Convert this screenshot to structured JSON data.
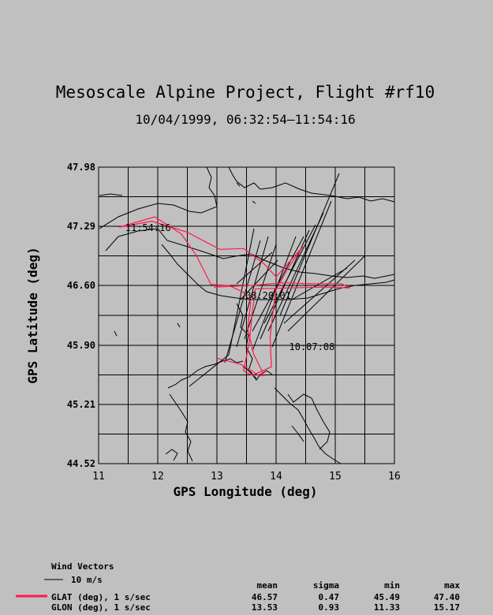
{
  "chart_data": {
    "type": "line",
    "title": "Mesoscale Alpine Project, Flight #rf10",
    "subtitle": "10/04/1999, 06:32:54–11:54:16",
    "xlabel": "GPS Longitude (deg)",
    "ylabel": "GPS Latitude (deg)",
    "xlim": [
      11,
      16
    ],
    "ylim": [
      44.52,
      47.98
    ],
    "x_ticks": [
      "11",
      "12",
      "13",
      "14",
      "15",
      "16"
    ],
    "y_ticks": [
      "44.52",
      "45.21",
      "45.90",
      "46.60",
      "47.29",
      "47.98"
    ],
    "grid": true,
    "series": [
      {
        "name": "GLAT (deg), 1 s/sec",
        "color": "#ff1a4a",
        "points": [
          [
            13.0,
            45.75
          ],
          [
            13.4,
            45.68
          ],
          [
            13.55,
            45.62
          ],
          [
            13.7,
            45.55
          ],
          [
            13.8,
            45.55
          ],
          [
            13.62,
            45.8
          ],
          [
            13.52,
            46.1
          ],
          [
            13.57,
            46.4
          ],
          [
            13.45,
            46.52
          ],
          [
            13.2,
            46.6
          ],
          [
            12.9,
            46.61
          ],
          [
            12.65,
            46.95
          ],
          [
            12.4,
            47.2
          ],
          [
            11.95,
            47.4
          ],
          [
            11.35,
            47.28
          ],
          [
            11.9,
            47.35
          ],
          [
            12.5,
            47.22
          ],
          [
            13.05,
            47.02
          ],
          [
            13.45,
            47.03
          ],
          [
            13.8,
            46.85
          ],
          [
            14.0,
            46.7
          ],
          [
            14.45,
            47.05
          ],
          [
            14.2,
            46.8
          ],
          [
            14.0,
            46.55
          ],
          [
            13.95,
            46.3
          ],
          [
            13.9,
            46.0
          ],
          [
            13.92,
            45.65
          ],
          [
            13.6,
            45.55
          ],
          [
            13.45,
            45.6
          ],
          [
            13.55,
            45.95
          ],
          [
            13.6,
            46.3
          ],
          [
            13.65,
            46.56
          ],
          [
            14.2,
            46.57
          ],
          [
            14.8,
            46.58
          ],
          [
            15.25,
            46.57
          ],
          [
            15.1,
            46.62
          ],
          [
            14.6,
            46.62
          ],
          [
            14.1,
            46.63
          ],
          [
            13.6,
            46.6
          ],
          [
            12.95,
            46.58
          ]
        ]
      }
    ],
    "annotations": [
      {
        "text": "11:54:16",
        "x": 11.45,
        "y": 47.27
      },
      {
        "text": "08:20:01",
        "x": 13.48,
        "y": 46.48
      },
      {
        "text": "10:07:08",
        "x": 14.22,
        "y": 45.88
      }
    ],
    "wind_legend": {
      "title": "Wind Vectors",
      "scale_label": "10 m/s"
    },
    "stats": {
      "headers": [
        "mean",
        "sigma",
        "min",
        "max"
      ],
      "rows": [
        {
          "label": "GLAT (deg), 1 s/sec",
          "mean": "46.57",
          "sigma": "0.47",
          "min": "45.49",
          "max": "47.40"
        },
        {
          "label": "GLON (deg), 1 s/sec",
          "mean": "13.53",
          "sigma": "0.93",
          "min": "11.33",
          "max": "15.17"
        }
      ]
    }
  }
}
